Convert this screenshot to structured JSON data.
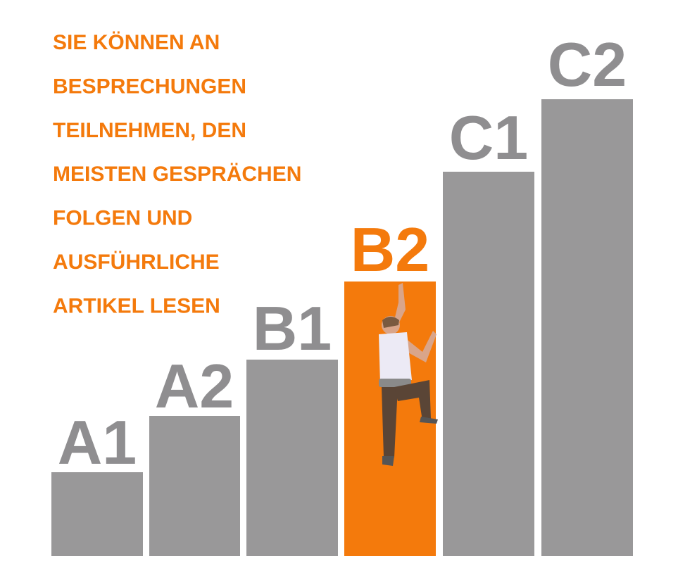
{
  "text_lines": [
    "SIE KÖNNEN AN",
    "BESPRECHUNGEN",
    "TEILNEHMEN, DEN",
    "MEISTEN GESPRÄCHEN",
    "FOLGEN UND",
    "AUSFÜHRLICHE",
    "ARTIKEL LESEN"
  ],
  "levels": [
    "A1",
    "A2",
    "B1",
    "B2",
    "C1",
    "C2"
  ]
}
